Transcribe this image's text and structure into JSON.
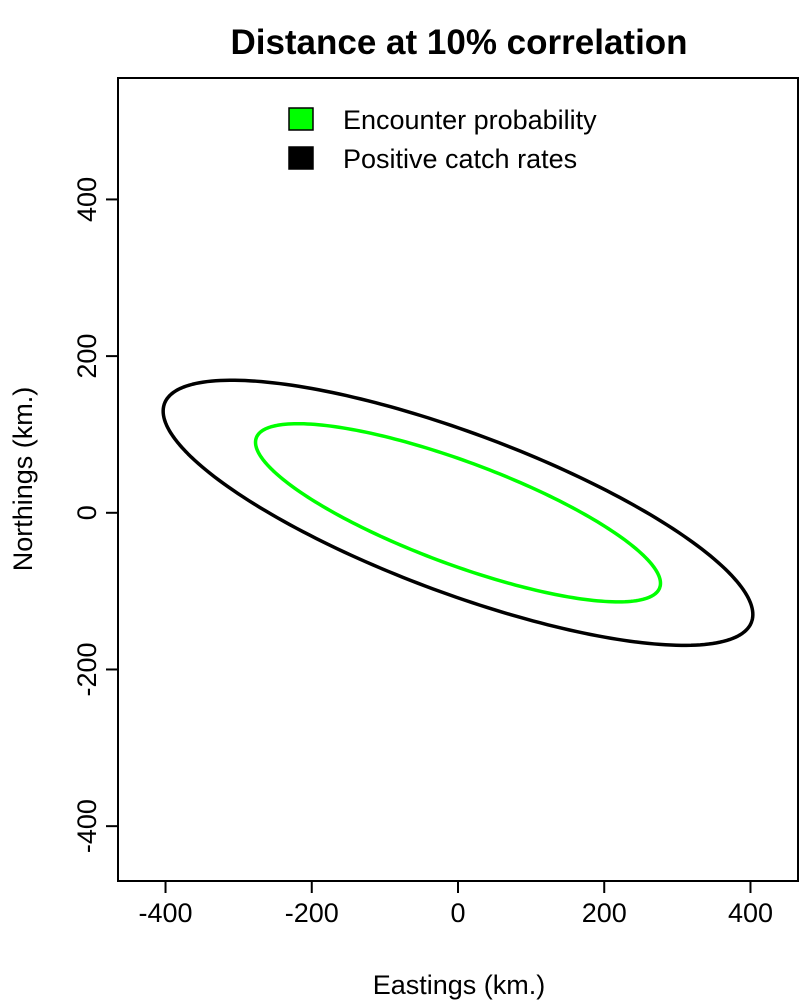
{
  "chart_data": {
    "type": "line",
    "title": "Distance at 10% correlation",
    "xlabel": "Eastings (km.)",
    "ylabel": "Northings (km.)",
    "xlim": [
      -465,
      465
    ],
    "ylim": [
      -470,
      555
    ],
    "xticks": [
      -400,
      -200,
      0,
      200,
      400
    ],
    "yticks": [
      -400,
      -200,
      0,
      200,
      400
    ],
    "grid": false,
    "legend_position": "top",
    "series": [
      {
        "name": "Encounter probability",
        "color": "#00ff00",
        "shape": "ellipse",
        "center": [
          0,
          0
        ],
        "semi_major": 292,
        "semi_minor": 66,
        "angle_deg": -19
      },
      {
        "name": "Positive catch rates",
        "color": "#000000",
        "shape": "ellipse",
        "center": [
          0,
          0
        ],
        "semi_major": 425,
        "semi_minor": 103,
        "angle_deg": -19
      }
    ]
  }
}
